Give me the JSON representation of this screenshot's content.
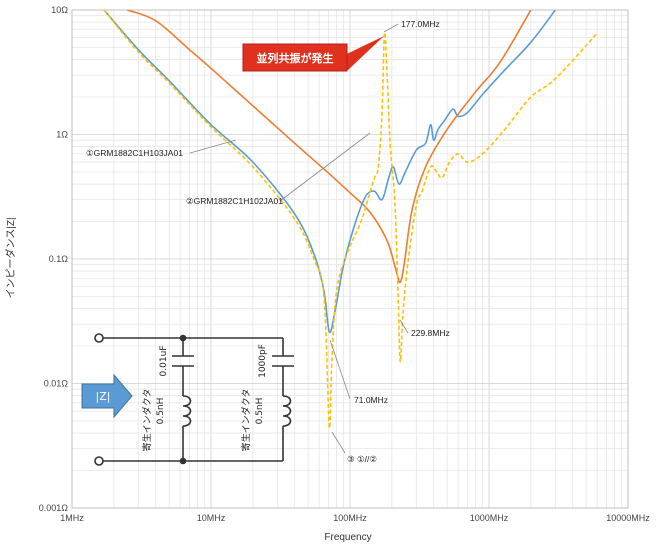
{
  "chart_data": {
    "type": "line",
    "xlabel": "Frequency",
    "ylabel": "インピーダンス|Z|",
    "x_scale": "log",
    "y_scale": "log",
    "xlim": [
      1,
      10000
    ],
    "ylim": [
      0.001,
      10
    ],
    "x_ticks": [
      "1MHz",
      "10MHz",
      "100MHz",
      "1000MHz",
      "10000MHz"
    ],
    "y_ticks": [
      "10Ω",
      "1Ω",
      "0.1Ω",
      "0.01Ω",
      "0.001Ω"
    ],
    "grid": true,
    "series": [
      {
        "color": "#ED7D31",
        "dash": "solid",
        "x": [
          2.5,
          4,
          7,
          10,
          20,
          40,
          70,
          100,
          130,
          160,
          190,
          215,
          229.8,
          245,
          280,
          350,
          500,
          800,
          1200,
          2000
        ],
        "y": [
          10,
          8.2,
          4.8,
          3.4,
          1.7,
          0.85,
          0.49,
          0.34,
          0.26,
          0.19,
          0.13,
          0.08,
          0.065,
          0.09,
          0.25,
          0.55,
          1.1,
          2.2,
          3.8,
          10
        ]
      },
      {
        "color": "#5B9BD5",
        "dash": "solid",
        "x": [
          1.7,
          3,
          5,
          10,
          20,
          40,
          55,
          65,
          71,
          78,
          90,
          110,
          130,
          150,
          170,
          190,
          205,
          225,
          250,
          300,
          350,
          380,
          400,
          430,
          480,
          550,
          600,
          700,
          900,
          1300,
          2000,
          3000
        ],
        "y": [
          10,
          4.8,
          2.7,
          1.2,
          0.6,
          0.23,
          0.11,
          0.055,
          0.026,
          0.038,
          0.09,
          0.2,
          0.32,
          0.35,
          0.3,
          0.45,
          0.55,
          0.4,
          0.5,
          0.75,
          0.85,
          1.2,
          0.9,
          1.1,
          1.3,
          1.6,
          1.4,
          1.5,
          2.1,
          3.3,
          5.5,
          10
        ]
      },
      {
        "color": "#FFC000",
        "dash": "dash",
        "x": [
          1.7,
          3,
          5,
          10,
          20,
          40,
          55,
          65,
          71,
          74,
          80,
          95,
          120,
          140,
          150,
          160,
          170,
          177,
          185,
          195,
          210,
          222,
          229.8,
          240,
          260,
          300,
          330,
          380,
          420,
          460,
          520,
          600,
          700,
          900,
          1300,
          2000,
          3000,
          6000
        ],
        "y": [
          10,
          4.6,
          2.6,
          1.15,
          0.55,
          0.21,
          0.1,
          0.05,
          0.0045,
          0.015,
          0.055,
          0.11,
          0.2,
          0.35,
          0.45,
          0.55,
          1.5,
          6.5,
          3.0,
          0.8,
          0.3,
          0.05,
          0.015,
          0.035,
          0.09,
          0.27,
          0.35,
          0.55,
          0.5,
          0.45,
          0.6,
          0.7,
          0.6,
          0.7,
          1.1,
          2.0,
          2.8,
          6.5
        ]
      }
    ],
    "annotations": [
      {
        "text": "①GRM1882C1H103JA01",
        "x": 10.5,
        "y": 0.9
      },
      {
        "text": "②GRM1882C1H102JA01",
        "x": 22,
        "y": 0.33
      },
      {
        "text": "③ ①//②",
        "x": 72,
        "y": 0.0045
      },
      {
        "text": "177.0MHz",
        "x": 177,
        "y": 6.5
      },
      {
        "text": "229.8MHz",
        "x": 229.8,
        "y": 0.015
      },
      {
        "text": "71.0MHz",
        "x": 71,
        "y": 0.026
      }
    ],
    "callout": "並列共振が発生"
  },
  "circuit": {
    "z_label": "|Z|",
    "c1_value": "0.01uF",
    "c2_value": "1000pF",
    "l1_value": "0.5nH",
    "l2_value": "0.5nH",
    "l1_name": "寄生インダクタ",
    "l2_name": "寄生インダクタ"
  }
}
